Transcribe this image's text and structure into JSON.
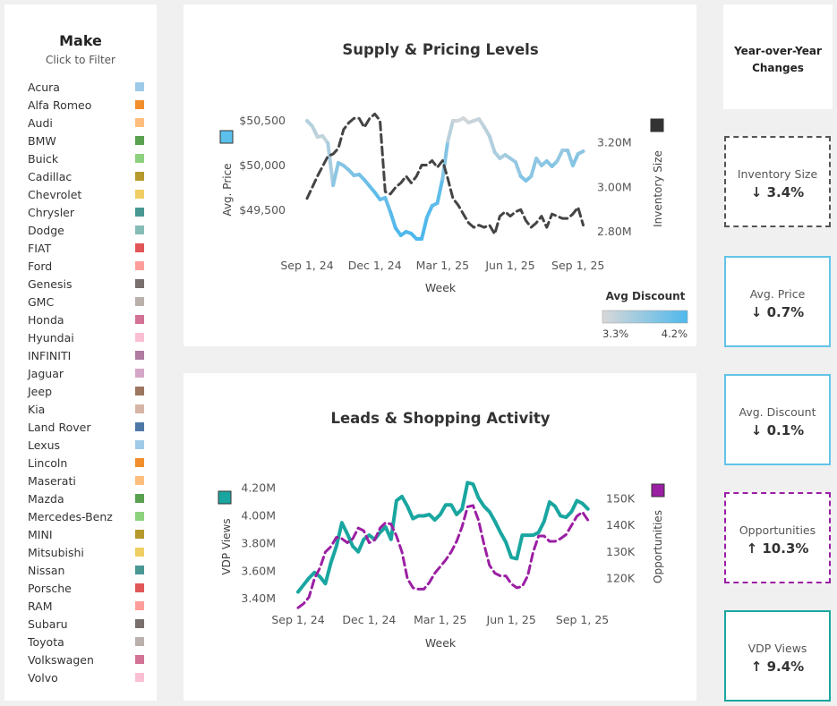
{
  "make_filter": {
    "title": "Make",
    "subtitle": "Click to Filter",
    "items": [
      {
        "label": "Acura",
        "color": "#9ecae9"
      },
      {
        "label": "Alfa Romeo",
        "color": "#f28e2b"
      },
      {
        "label": "Audi",
        "color": "#ffbe7d"
      },
      {
        "label": "BMW",
        "color": "#59a14f"
      },
      {
        "label": "Buick",
        "color": "#8cd17d"
      },
      {
        "label": "Cadillac",
        "color": "#b6992d"
      },
      {
        "label": "Chevrolet",
        "color": "#f1ce63"
      },
      {
        "label": "Chrysler",
        "color": "#499894"
      },
      {
        "label": "Dodge",
        "color": "#86bcb6"
      },
      {
        "label": "FIAT",
        "color": "#e15759"
      },
      {
        "label": "Ford",
        "color": "#ff9d9a"
      },
      {
        "label": "Genesis",
        "color": "#79706e"
      },
      {
        "label": "GMC",
        "color": "#bab0ac"
      },
      {
        "label": "Honda",
        "color": "#d37295"
      },
      {
        "label": "Hyundai",
        "color": "#fabfd2"
      },
      {
        "label": "INFINITI",
        "color": "#b07aa1"
      },
      {
        "label": "Jaguar",
        "color": "#d4a6c8"
      },
      {
        "label": "Jeep",
        "color": "#9d7660"
      },
      {
        "label": "Kia",
        "color": "#d7b5a6"
      },
      {
        "label": "Land Rover",
        "color": "#4e79a7"
      },
      {
        "label": "Lexus",
        "color": "#a0cbe8"
      },
      {
        "label": "Lincoln",
        "color": "#f28e2b"
      },
      {
        "label": "Maserati",
        "color": "#ffbe7d"
      },
      {
        "label": "Mazda",
        "color": "#59a14f"
      },
      {
        "label": "Mercedes-Benz",
        "color": "#8cd17d"
      },
      {
        "label": "MINI",
        "color": "#b6992d"
      },
      {
        "label": "Mitsubishi",
        "color": "#f1ce63"
      },
      {
        "label": "Nissan",
        "color": "#499894"
      },
      {
        "label": "Porsche",
        "color": "#e15759"
      },
      {
        "label": "RAM",
        "color": "#ff9d9a"
      },
      {
        "label": "Subaru",
        "color": "#79706e"
      },
      {
        "label": "Toyota",
        "color": "#bab0ac"
      },
      {
        "label": "Volkswagen",
        "color": "#d37295"
      },
      {
        "label": "Volvo",
        "color": "#fabfd2"
      }
    ]
  },
  "yoy": {
    "title_line1": "Year-over-Year",
    "title_line2": "Changes",
    "cards": [
      {
        "label": "Inventory Size",
        "value": "↓ 3.4%",
        "border_color": "#555555",
        "dashed": true
      },
      {
        "label": "Avg. Price",
        "value": "↓ 0.7%",
        "border_color": "#62c3e8",
        "dashed": false
      },
      {
        "label": "Avg. Discount",
        "value": "↓ 0.1%",
        "border_color": "#62c3e8",
        "dashed": false
      },
      {
        "label": "Opportunities",
        "value": "↑ 10.3%",
        "border_color": "#9b1fa3",
        "dashed": true
      },
      {
        "label": "VDP Views",
        "value": "↑ 9.4%",
        "border_color": "#1aa6a0",
        "dashed": false
      }
    ]
  },
  "chart_data": [
    {
      "type": "line",
      "title": "Supply & Pricing Levels",
      "xlabel": "Week",
      "x_ticks": [
        "Sep 1, 24",
        "Dec 1, 24",
        "Mar 1, 25",
        "Jun 1, 25",
        "Sep 1, 25"
      ],
      "x_range": [
        0,
        56
      ],
      "x_tick_values": [
        0,
        13,
        26,
        39,
        52
      ],
      "y_left": {
        "label": "Avg. Price",
        "ticks": [
          "$49,500",
          "$50,000",
          "$50,500"
        ],
        "tick_values": [
          49500,
          50000,
          50500
        ],
        "range": [
          48800,
          50800
        ],
        "legend_color": "#5bc0eb"
      },
      "y_right": {
        "label": "Inventory Size",
        "ticks": [
          "2.80M",
          "3.00M",
          "3.20M"
        ],
        "tick_values": [
          2800000,
          3000000,
          3200000
        ],
        "range": [
          2615000,
          3420000
        ],
        "legend_color": "#333333"
      },
      "color_legend": {
        "title": "Avg Discount",
        "min_label": "3.3%",
        "max_label": "4.2%",
        "min": 3.3,
        "max": 4.2,
        "min_color": "#d8d8d8",
        "max_color": "#4fb8ec"
      },
      "series": [
        {
          "name": "Avg. Price",
          "axis": "left",
          "style": "solid",
          "color_by": "Avg Discount",
          "x": [
            0,
            1,
            2,
            3,
            4,
            5,
            6,
            7,
            8,
            9,
            10,
            11,
            12,
            13,
            14,
            15,
            16,
            17,
            18,
            19,
            20,
            21,
            22,
            23,
            24,
            25,
            26,
            27,
            28,
            29,
            30,
            31,
            32,
            33,
            34,
            35,
            36,
            37,
            38,
            39,
            40,
            41,
            42,
            43,
            44,
            45,
            46,
            47,
            48,
            49,
            50,
            51,
            52,
            53
          ],
          "values": [
            50500,
            50440,
            50320,
            50330,
            50250,
            49780,
            50030,
            50000,
            49950,
            49890,
            49900,
            49840,
            49770,
            49700,
            49620,
            49640,
            49480,
            49300,
            49220,
            49260,
            49240,
            49180,
            49180,
            49420,
            49550,
            49580,
            49850,
            50270,
            50500,
            50500,
            50530,
            50480,
            50500,
            50520,
            50430,
            50330,
            50150,
            50080,
            50120,
            50080,
            50040,
            49880,
            49830,
            49880,
            50080,
            50000,
            50050,
            49990,
            50050,
            50170,
            50170,
            50000,
            50130,
            50160
          ],
          "discount": [
            3.6,
            3.5,
            3.5,
            3.4,
            3.5,
            3.7,
            3.9,
            3.8,
            3.9,
            3.9,
            3.9,
            4.0,
            4.0,
            4.1,
            4.1,
            4.0,
            4.1,
            4.2,
            4.2,
            4.2,
            4.2,
            4.2,
            4.2,
            4.2,
            4.1,
            4.1,
            4.1,
            3.6,
            3.4,
            3.4,
            3.3,
            3.4,
            3.4,
            3.4,
            3.5,
            3.5,
            3.6,
            3.6,
            3.6,
            3.7,
            3.7,
            3.8,
            3.9,
            3.9,
            3.7,
            3.8,
            3.8,
            3.9,
            3.8,
            3.7,
            3.7,
            3.9,
            3.8,
            3.8
          ]
        },
        {
          "name": "Inventory Size",
          "axis": "right",
          "style": "dashed",
          "color": "#444444",
          "x": [
            0,
            2,
            4,
            5,
            6,
            7,
            8,
            9,
            10,
            11,
            12,
            13,
            14,
            15,
            16,
            17,
            18,
            19,
            20,
            21,
            22,
            23,
            24,
            25,
            26,
            27,
            28,
            29,
            30,
            31,
            32,
            33,
            34,
            35,
            36,
            37,
            38,
            39,
            40,
            41,
            42,
            43,
            44,
            45,
            46,
            47,
            48,
            49,
            50,
            51,
            52,
            53
          ],
          "values": [
            2950000,
            3050000,
            3140000,
            3150000,
            3175000,
            3260000,
            3290000,
            3310000,
            3310000,
            3270000,
            3310000,
            3330000,
            3300000,
            2980000,
            2970000,
            3000000,
            3020000,
            3050000,
            3020000,
            3050000,
            3100000,
            3100000,
            3120000,
            3090000,
            3120000,
            3040000,
            2950000,
            2920000,
            2880000,
            2840000,
            2820000,
            2830000,
            2820000,
            2830000,
            2790000,
            2870000,
            2890000,
            2870000,
            2890000,
            2900000,
            2850000,
            2820000,
            2840000,
            2870000,
            2820000,
            2880000,
            2870000,
            2860000,
            2860000,
            2880000,
            2910000,
            2830000
          ]
        }
      ]
    },
    {
      "type": "line",
      "title": "Leads & Shopping Activity",
      "xlabel": "Week",
      "x_ticks": [
        "Sep 1, 24",
        "Dec 1, 24",
        "Mar 1, 25",
        "Jun 1, 25",
        "Sep 1, 25"
      ],
      "x_range": [
        0,
        56
      ],
      "x_tick_values": [
        0,
        13,
        26,
        39,
        52
      ],
      "y_left": {
        "label": "VDP Views",
        "ticks": [
          "3.40M",
          "3.60M",
          "3.80M",
          "4.00M",
          "4.20M"
        ],
        "tick_values": [
          3400000,
          3600000,
          3800000,
          4000000,
          4200000
        ],
        "range": [
          3220000,
          4450000
        ],
        "legend_color": "#1aa6a0"
      },
      "y_right": {
        "label": "Opportunities",
        "ticks": [
          "120K",
          "130K",
          "140K",
          "150K"
        ],
        "tick_values": [
          120000,
          130000,
          140000,
          150000
        ],
        "range": [
          103000,
          167000
        ],
        "legend_color": "#9b1fa3"
      },
      "series": [
        {
          "name": "VDP Views",
          "axis": "left",
          "style": "solid",
          "color": "#1aa6a0",
          "x": [
            0,
            1,
            2,
            3,
            4,
            5,
            6,
            7,
            8,
            9,
            10,
            11,
            12,
            13,
            14,
            15,
            16,
            17,
            18,
            19,
            20,
            21,
            22,
            23,
            24,
            25,
            26,
            27,
            28,
            29,
            30,
            31,
            32,
            33,
            34,
            35,
            36,
            37,
            38,
            39,
            40,
            41,
            42,
            43,
            44,
            45,
            46,
            47,
            48,
            49,
            50,
            51,
            52,
            53
          ],
          "values": [
            3450000,
            3500000,
            3550000,
            3590000,
            3560000,
            3510000,
            3660000,
            3780000,
            3950000,
            3870000,
            3780000,
            3740000,
            3830000,
            3860000,
            3830000,
            3880000,
            3920000,
            3830000,
            4110000,
            4140000,
            4070000,
            3980000,
            4000000,
            4000000,
            4010000,
            3970000,
            4010000,
            4080000,
            4080000,
            4010000,
            4050000,
            4240000,
            4230000,
            4130000,
            4070000,
            4030000,
            3960000,
            3880000,
            3810000,
            3700000,
            3690000,
            3860000,
            3860000,
            3860000,
            3880000,
            3960000,
            4100000,
            4070000,
            4000000,
            3990000,
            4030000,
            4110000,
            4090000,
            4050000
          ]
        },
        {
          "name": "Opportunities",
          "axis": "right",
          "style": "dashed",
          "color": "#9b1fa3",
          "x": [
            0,
            1,
            2,
            3,
            4,
            5,
            6,
            7,
            8,
            9,
            10,
            11,
            12,
            13,
            14,
            15,
            16,
            17,
            18,
            19,
            20,
            21,
            22,
            23,
            24,
            25,
            26,
            27,
            28,
            29,
            30,
            31,
            32,
            33,
            34,
            35,
            36,
            37,
            38,
            39,
            40,
            41,
            42,
            43,
            44,
            45,
            46,
            47,
            48,
            49,
            50,
            51,
            52,
            53
          ],
          "values": [
            109000,
            110500,
            113000,
            120000,
            124000,
            130000,
            132000,
            135500,
            135000,
            133500,
            135000,
            139000,
            138000,
            133500,
            134500,
            139000,
            141000,
            140500,
            136000,
            130000,
            120000,
            116500,
            116000,
            116000,
            118500,
            122000,
            124500,
            127000,
            130000,
            134000,
            139500,
            147000,
            147500,
            142000,
            133000,
            125000,
            122000,
            121000,
            121000,
            118000,
            116500,
            117000,
            121000,
            130000,
            136000,
            136000,
            134000,
            134000,
            135000,
            136500,
            140000,
            143500,
            145000,
            142000
          ]
        }
      ]
    }
  ]
}
